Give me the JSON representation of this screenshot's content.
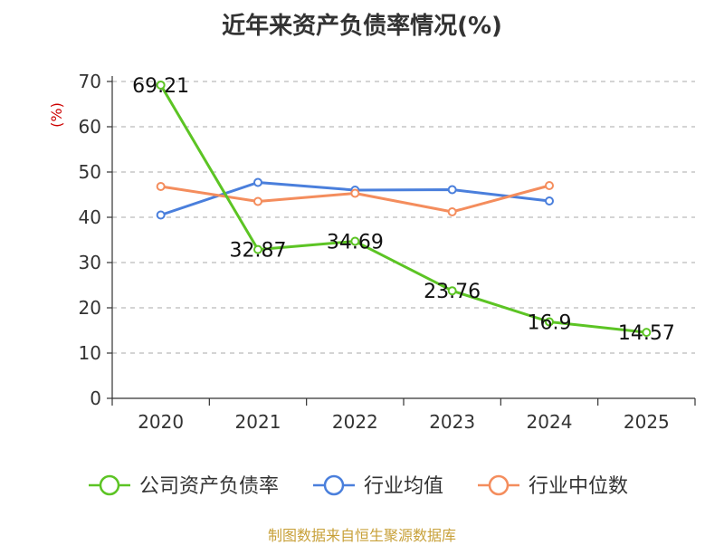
{
  "chart_data": {
    "type": "line",
    "title": "近年来资产负债率情况(%)",
    "ylabel": "(%)",
    "categories": [
      "2020",
      "2021",
      "2022",
      "2023",
      "2024",
      "2025"
    ],
    "ylim": [
      0,
      70
    ],
    "yticks": [
      "0",
      "10",
      "20",
      "30",
      "40",
      "50",
      "60",
      "70"
    ],
    "grid": true,
    "legend_position": "bottom",
    "series": [
      {
        "name": "公司资产负债率",
        "color": "#5cc424",
        "values": [
          69.21,
          32.87,
          34.69,
          23.76,
          16.9,
          14.57
        ],
        "labels": [
          "69.21",
          "32.87",
          "34.69",
          "23.76",
          "16.9",
          "14.57"
        ]
      },
      {
        "name": "行业均值",
        "color": "#4a7fdc",
        "values": [
          40.5,
          47.7,
          46.0,
          46.1,
          43.6,
          null
        ]
      },
      {
        "name": "行业中位数",
        "color": "#f48d5d",
        "values": [
          46.8,
          43.5,
          45.3,
          41.2,
          47.0,
          null
        ]
      }
    ],
    "source": "制图数据来自恒生聚源数据库"
  }
}
